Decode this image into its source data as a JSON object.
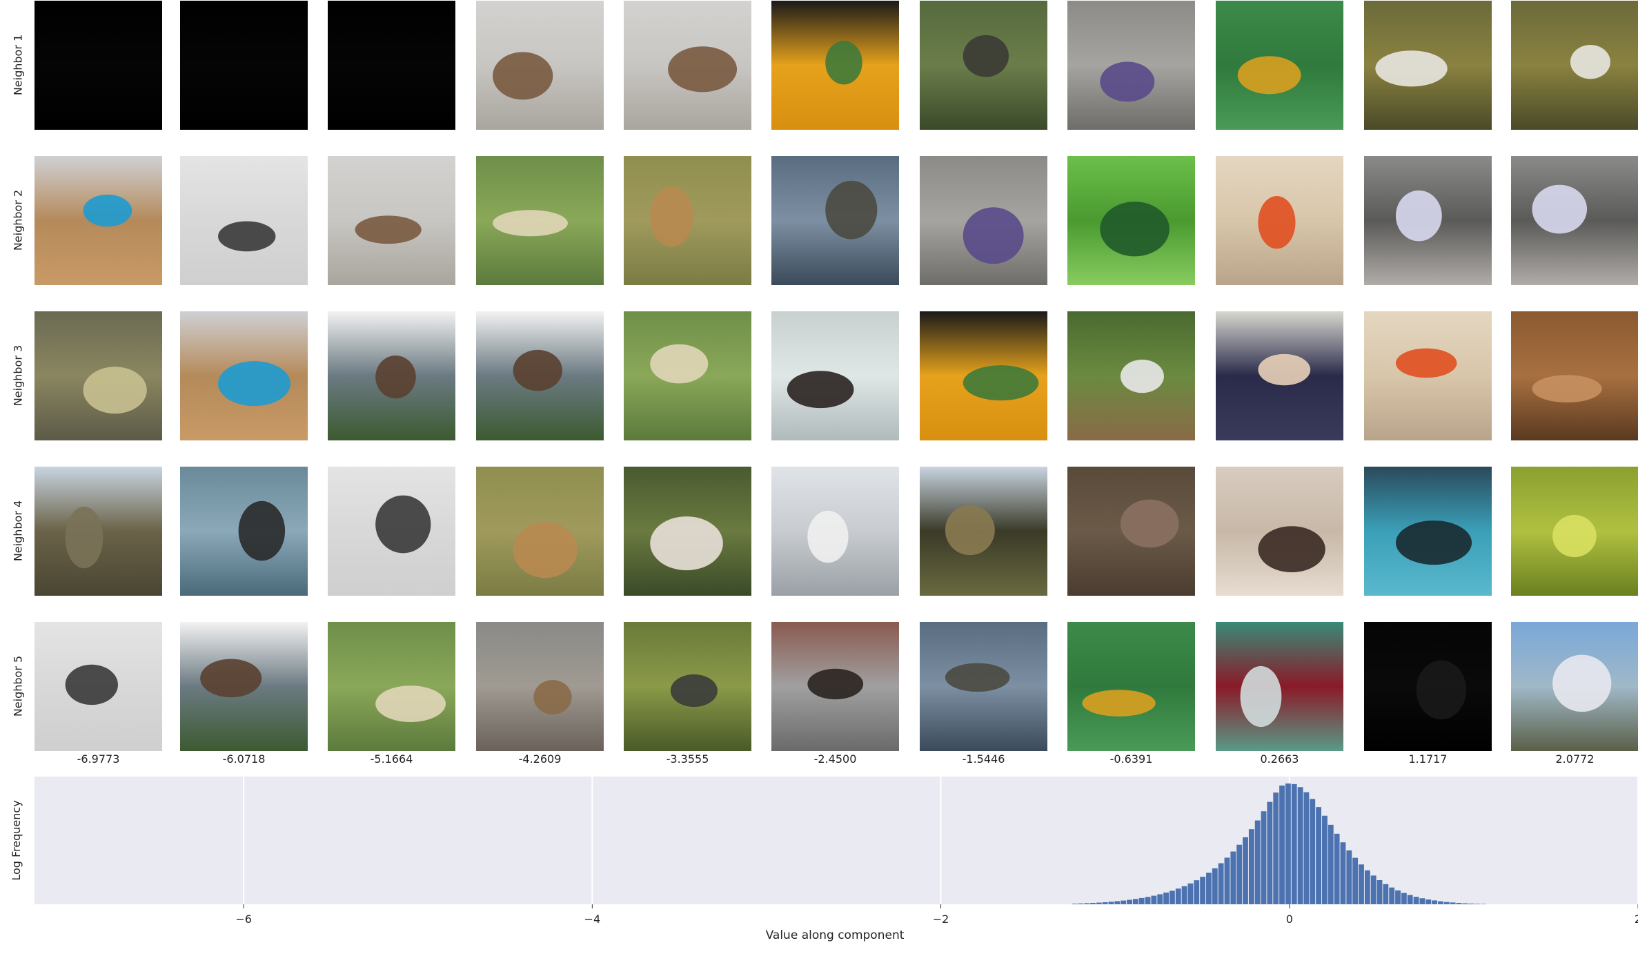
{
  "grid": {
    "row_labels": [
      "Neighbor 1",
      "Neighbor 2",
      "Neighbor 3",
      "Neighbor 4",
      "Neighbor 5"
    ],
    "column_values": [
      "-6.9773",
      "-6.0718",
      "-5.1664",
      "-4.2609",
      "-3.3555",
      "-2.4500",
      "-1.5446",
      "-0.6391",
      "0.2663",
      "1.1717",
      "2.0772"
    ],
    "tiles": [
      [
        {
          "desc": "black",
          "colors": [
            "#000000",
            "#050505",
            "#000000"
          ]
        },
        {
          "desc": "black",
          "colors": [
            "#000000",
            "#050505",
            "#000000"
          ]
        },
        {
          "desc": "black",
          "colors": [
            "#000000",
            "#050505",
            "#000000"
          ]
        },
        {
          "desc": "hare on snow",
          "colors": [
            "#d4d2d0",
            "#c8c6c2",
            "#a9a59e"
          ],
          "subject": "#7a5a40"
        },
        {
          "desc": "hare on snow",
          "colors": [
            "#d4d2d0",
            "#c8c6c2",
            "#a9a59e"
          ],
          "subject": "#7a5a40"
        },
        {
          "desc": "peacock on orange",
          "colors": [
            "#1a1a1a",
            "#e6a21c",
            "#d88f10"
          ],
          "subject": "#3f7a3a"
        },
        {
          "desc": "duck in grass",
          "colors": [
            "#566a3e",
            "#6b7d4a",
            "#3a4a2a"
          ],
          "subject": "#3b3b35"
        },
        {
          "desc": "lizard on rock",
          "colors": [
            "#8d8b88",
            "#a6a4a0",
            "#6f6d6a"
          ],
          "subject": "#5a4a8a"
        },
        {
          "desc": "salamander on leaf",
          "colors": [
            "#3d8a4a",
            "#2f7a3c",
            "#4b9a58"
          ],
          "subject": "#d9a020"
        },
        {
          "desc": "egret",
          "colors": [
            "#6b6a3a",
            "#8a8240",
            "#4a4a28"
          ],
          "subject": "#e8e6e0"
        },
        {
          "desc": "egret",
          "colors": [
            "#6b6a3a",
            "#8a8240",
            "#4a4a28"
          ],
          "subject": "#e8e6e0"
        }
      ],
      [
        {
          "desc": "wood deck",
          "colors": [
            "#cfd0d4",
            "#b58a5a",
            "#c89a66"
          ],
          "subject": "#1e9bd0"
        },
        {
          "desc": "grey bird",
          "colors": [
            "#e4e4e4",
            "#d8d8d8",
            "#cfcfcf"
          ],
          "subject": "#3a3a3a"
        },
        {
          "desc": "hare on snow",
          "colors": [
            "#d4d2d0",
            "#c8c6c2",
            "#a9a59e"
          ],
          "subject": "#7a5a40"
        },
        {
          "desc": "grass field",
          "colors": [
            "#6f8f4a",
            "#8aa858",
            "#5c7a3c"
          ],
          "subject": "#e0d6b8"
        },
        {
          "desc": "gazelle",
          "colors": [
            "#8f8f50",
            "#a09a5c",
            "#7a7c44"
          ],
          "subject": "#b88a50"
        },
        {
          "desc": "turtle",
          "colors": [
            "#5a6c80",
            "#7d8fa2",
            "#3a4a5a"
          ],
          "subject": "#4a4a40"
        },
        {
          "desc": "lizard on rock",
          "colors": [
            "#8d8b88",
            "#a6a4a0",
            "#6f6d6a"
          ],
          "subject": "#5a4a8a"
        },
        {
          "desc": "beetles on leaf",
          "colors": [
            "#6cbf4a",
            "#4a9a30",
            "#88cc60"
          ],
          "subject": "#1f5a2a"
        },
        {
          "desc": "scarf",
          "colors": [
            "#e4d6c0",
            "#d8c6aa",
            "#b8a48a"
          ],
          "subject": "#e05020"
        },
        {
          "desc": "pipe organ",
          "colors": [
            "#8a8a88",
            "#5a5a58",
            "#b0aca8"
          ],
          "subject": "#d8d8f0"
        },
        {
          "desc": "pipe organ",
          "colors": [
            "#8a8a88",
            "#5a5a58",
            "#b0aca8"
          ],
          "subject": "#d8d8f0"
        }
      ],
      [
        {
          "desc": "murky water",
          "colors": [
            "#6b6a52",
            "#8a8660",
            "#5c5a48"
          ],
          "subject": "#c8c090"
        },
        {
          "desc": "wood deck",
          "colors": [
            "#cfd0d4",
            "#b58a5a",
            "#c89a66"
          ],
          "subject": "#1e9bd0"
        },
        {
          "desc": "marmot on hill",
          "colors": [
            "#f2f2f2",
            "#6b7a82",
            "#3c5a30"
          ],
          "subject": "#5a4030"
        },
        {
          "desc": "marmot on hill",
          "colors": [
            "#f2f2f2",
            "#6b7a82",
            "#3c5a30"
          ],
          "subject": "#5a4030"
        },
        {
          "desc": "grass field",
          "colors": [
            "#6f8f4a",
            "#8aa858",
            "#5c7a3c"
          ],
          "subject": "#e0d6b8"
        },
        {
          "desc": "mink on ice",
          "colors": [
            "#c8d0d0",
            "#dfe6e6",
            "#b0babb"
          ],
          "subject": "#2a2420"
        },
        {
          "desc": "peacock on orange",
          "colors": [
            "#1a1a1a",
            "#e6a21c",
            "#d88f10"
          ],
          "subject": "#3f7a3a"
        },
        {
          "desc": "chickadee on branch",
          "colors": [
            "#4a6a30",
            "#6b8a40",
            "#8a6a48"
          ],
          "subject": "#e8e8e8"
        },
        {
          "desc": "graduates",
          "colors": [
            "#d8d8d0",
            "#2a2a4a",
            "#3a3a5a"
          ],
          "subject": "#e8d0b8"
        },
        {
          "desc": "scarf",
          "colors": [
            "#e4d6c0",
            "#d8c6aa",
            "#b8a48a"
          ],
          "subject": "#e05020"
        },
        {
          "desc": "pastry",
          "colors": [
            "#8a5a30",
            "#a87040",
            "#5a3a20"
          ],
          "subject": "#c89060"
        }
      ],
      [
        {
          "desc": "grassy hill",
          "colors": [
            "#c8d4e0",
            "#6a6248",
            "#4a4634"
          ],
          "subject": "#7a7258"
        },
        {
          "desc": "oystercatcher",
          "colors": [
            "#6a8a9a",
            "#8aa8b8",
            "#4a6a7a"
          ],
          "subject": "#2a2a2a"
        },
        {
          "desc": "grey bird",
          "colors": [
            "#e4e4e4",
            "#d8d8d8",
            "#cfcfcf"
          ],
          "subject": "#3a3a3a"
        },
        {
          "desc": "gazelle",
          "colors": [
            "#8f8f50",
            "#a09a5c",
            "#7a7c44"
          ],
          "subject": "#b88a50"
        },
        {
          "desc": "dogs in field",
          "colors": [
            "#4a5a30",
            "#6a7a40",
            "#3a4a28"
          ],
          "subject": "#e8e0d8"
        },
        {
          "desc": "ptarmigan",
          "colors": [
            "#e0e4e8",
            "#c8ccd0",
            "#9aa0a6"
          ],
          "subject": "#f0f0f0"
        },
        {
          "desc": "hay bales",
          "colors": [
            "#c8d4e0",
            "#3a3a28",
            "#6a6a40"
          ],
          "subject": "#8a7a50"
        },
        {
          "desc": "tarantula",
          "colors": [
            "#5a4a3a",
            "#6b5a48",
            "#4a3c30"
          ],
          "subject": "#8a7060"
        },
        {
          "desc": "teapots",
          "colors": [
            "#d8ccc0",
            "#c8b8a8",
            "#e6dcd0"
          ],
          "subject": "#3a2a24"
        },
        {
          "desc": "blue knit",
          "colors": [
            "#2a4a5a",
            "#3aa0b8",
            "#5ab8cc"
          ],
          "subject": "#1a2a30"
        },
        {
          "desc": "green fruit",
          "colors": [
            "#8aa030",
            "#b0c040",
            "#6a8020"
          ],
          "subject": "#d8e060"
        }
      ],
      [
        {
          "desc": "grey bird",
          "colors": [
            "#e4e4e4",
            "#d8d8d8",
            "#cfcfcf"
          ],
          "subject": "#3a3a3a"
        },
        {
          "desc": "marmot on hill",
          "colors": [
            "#f2f2f2",
            "#6b7a82",
            "#3c5a30"
          ],
          "subject": "#5a4030"
        },
        {
          "desc": "grass field",
          "colors": [
            "#6f8f4a",
            "#8aa858",
            "#5c7a3c"
          ],
          "subject": "#e0d6b8"
        },
        {
          "desc": "marmot on rock",
          "colors": [
            "#8a8a88",
            "#a09a92",
            "#6a625a"
          ],
          "subject": "#8a6a48"
        },
        {
          "desc": "moorhen",
          "colors": [
            "#6a7a3a",
            "#8a9a48",
            "#4a5a28"
          ],
          "subject": "#3a3c3a"
        },
        {
          "desc": "marmot on rocks",
          "colors": [
            "#8a5a50",
            "#a0a0a0",
            "#6a6a6a"
          ],
          "subject": "#2a2420"
        },
        {
          "desc": "turtle",
          "colors": [
            "#5a6c80",
            "#7d8fa2",
            "#3a4a5a"
          ],
          "subject": "#4a4a40"
        },
        {
          "desc": "salamander on leaf",
          "colors": [
            "#3d8a4a",
            "#2f7a3c",
            "#4b9a58"
          ],
          "subject": "#d9a020"
        },
        {
          "desc": "glass on table",
          "colors": [
            "#3a8a78",
            "#8a1a28",
            "#5a9a88"
          ],
          "subject": "#d0dcdc"
        },
        {
          "desc": "dark",
          "colors": [
            "#050505",
            "#0a0a0a",
            "#000000"
          ],
          "subject": "#1a1a1a"
        },
        {
          "desc": "boat on shore",
          "colors": [
            "#7aa8d8",
            "#a0b8c8",
            "#5a6048"
          ],
          "subject": "#e8e8f0"
        }
      ]
    ]
  },
  "chart_data": {
    "type": "bar",
    "xlabel": "Value along component",
    "ylabel": "Log Frequency",
    "xlim": [
      -7.2,
      2.0
    ],
    "xticks": [
      -6,
      -4,
      -2,
      0,
      2
    ],
    "xtick_labels": [
      "−6",
      "−4",
      "−2",
      "0",
      "2"
    ],
    "grid": true,
    "bar_color": "#4c72b0",
    "background": "#eaeaf2",
    "bin_width": 0.035,
    "bins": {
      "x": [
        -1.25,
        -1.215,
        -1.18,
        -1.145,
        -1.11,
        -1.075,
        -1.04,
        -1.005,
        -0.97,
        -0.935,
        -0.9,
        -0.865,
        -0.83,
        -0.795,
        -0.76,
        -0.725,
        -0.69,
        -0.655,
        -0.62,
        -0.585,
        -0.55,
        -0.515,
        -0.48,
        -0.445,
        -0.41,
        -0.375,
        -0.34,
        -0.305,
        -0.27,
        -0.235,
        -0.2,
        -0.165,
        -0.13,
        -0.095,
        -0.06,
        -0.025,
        0.01,
        0.045,
        0.08,
        0.115,
        0.15,
        0.185,
        0.22,
        0.255,
        0.29,
        0.325,
        0.36,
        0.395,
        0.43,
        0.465,
        0.5,
        0.535,
        0.57,
        0.605,
        0.64,
        0.675,
        0.71,
        0.745,
        0.78,
        0.815,
        0.85,
        0.885,
        0.92,
        0.955,
        0.99,
        1.025,
        1.06,
        1.095
      ],
      "height": [
        0.005,
        0.007,
        0.009,
        0.011,
        0.014,
        0.017,
        0.021,
        0.026,
        0.031,
        0.037,
        0.044,
        0.052,
        0.061,
        0.071,
        0.083,
        0.097,
        0.112,
        0.13,
        0.15,
        0.173,
        0.199,
        0.228,
        0.261,
        0.298,
        0.34,
        0.386,
        0.437,
        0.493,
        0.555,
        0.622,
        0.694,
        0.77,
        0.848,
        0.925,
        0.983,
        1.0,
        0.995,
        0.97,
        0.928,
        0.872,
        0.805,
        0.733,
        0.658,
        0.584,
        0.513,
        0.446,
        0.385,
        0.33,
        0.281,
        0.238,
        0.2,
        0.167,
        0.139,
        0.115,
        0.094,
        0.077,
        0.062,
        0.05,
        0.04,
        0.032,
        0.025,
        0.019,
        0.015,
        0.011,
        0.008,
        0.006,
        0.004,
        0.003
      ]
    }
  }
}
